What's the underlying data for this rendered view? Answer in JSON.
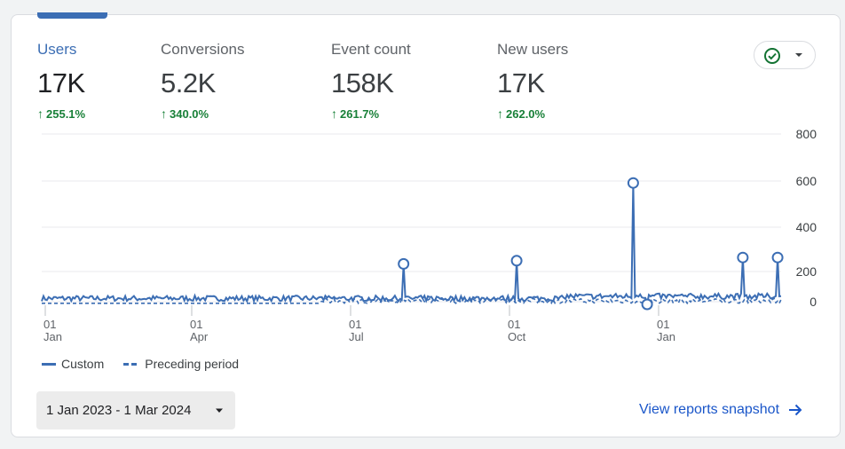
{
  "metrics": [
    {
      "label": "Users",
      "value": "17K",
      "change": "255.1%"
    },
    {
      "label": "Conversions",
      "value": "5.2K",
      "change": "340.0%"
    },
    {
      "label": "Event count",
      "value": "158K",
      "change": "261.7%"
    },
    {
      "label": "New users",
      "value": "17K",
      "change": "262.0%"
    }
  ],
  "colors": {
    "accent": "#3c6eb4",
    "positive": "#188038",
    "link": "#1a56c9"
  },
  "status_icon": "check-circle-icon",
  "chart_data": {
    "type": "line",
    "y_tick_labels": [
      "800",
      "600",
      "400",
      "200",
      "0"
    ],
    "ylim": [
      0,
      800
    ],
    "x_tick_labels": [
      {
        "day": "01",
        "month": "Jan"
      },
      {
        "day": "01",
        "month": "Apr"
      },
      {
        "day": "01",
        "month": "Jul"
      },
      {
        "day": "01",
        "month": "Oct"
      },
      {
        "day": "01",
        "month": "Jan"
      }
    ],
    "x_range": [
      "2023-01-01",
      "2024-03-01"
    ],
    "grid": true,
    "legend_position": "bottom-left",
    "series": [
      {
        "name": "Custom",
        "style": "solid",
        "baseline": 28,
        "anomalies": [
          {
            "date": "2023-07-28",
            "value": 190
          },
          {
            "date": "2023-10-01",
            "value": 205
          },
          {
            "date": "2023-12-07",
            "value": 570
          },
          {
            "date": "2023-12-15",
            "value": 0
          },
          {
            "date": "2024-02-08",
            "value": 220
          },
          {
            "date": "2024-02-28",
            "value": 220
          }
        ]
      },
      {
        "name": "Preceding period",
        "style": "dashed",
        "baseline": 5
      }
    ]
  },
  "legend": {
    "custom": "Custom",
    "preceding": "Preceding period"
  },
  "date_range": "1 Jan 2023 - 1 Mar 2024",
  "view_link": "View reports snapshot"
}
